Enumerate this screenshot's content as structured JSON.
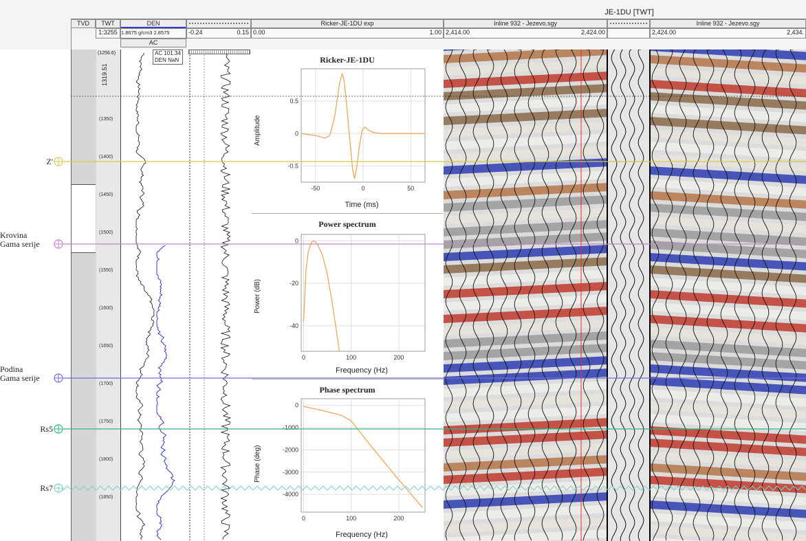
{
  "header": {
    "well_title": "JE-1DU [TWT]",
    "col_tvd": "TVD",
    "col_twt": "TWT",
    "twt_scale": "1:3255",
    "col_den": "DEN",
    "den_range": "1.8675 g/cm3 2.8575",
    "col_ac": "AC",
    "track3_min": "-0.24",
    "track3_max": "0.15",
    "wavelet_title": "Ricker-JE-1DU exp",
    "wavelet_min": "0.00",
    "wavelet_max": "1.00",
    "seismic1_title": "Inline 932 - Jezevo.sgy",
    "seismic1_min": "2,414.00",
    "seismic1_max": "2,424.00",
    "seismic2_title": "Inline 932 - Jezevo.sgy",
    "seismic2_min": "2,424.00",
    "seismic2_max": "2,434."
  },
  "log_readout": {
    "ac": "AC 101.34",
    "den": "DEN NaN",
    "depth_top": "(1256.6)",
    "cursor_depth": "1319.51"
  },
  "twt_ticks": [
    "(1350)",
    "(1400)",
    "(1450)",
    "(1500)",
    "(1550)",
    "(1600)",
    "(1650)",
    "(1700)",
    "(1750)",
    "(1800)",
    "(1850)"
  ],
  "horizons": [
    {
      "label": "Z'",
      "color": "#d4c84a"
    },
    {
      "label": "Krovina\nGama serije",
      "color": "#c97fd0"
    },
    {
      "label": "Podina\nGama serije",
      "color": "#6a6fd6"
    },
    {
      "label": "Rs5",
      "color": "#28b98a"
    },
    {
      "label": "Rs7",
      "color": "#7fd0c8"
    }
  ],
  "wavelet_panel": {
    "title": "Ricker-JE-1DU",
    "ylabel": "Amplitude",
    "xlabel": "Time (ms)",
    "xticks": [
      "-50",
      "0",
      "50"
    ],
    "yticks": [
      "0.5",
      "0",
      "-0.5"
    ]
  },
  "power_panel": {
    "title": "Power spectrum",
    "ylabel": "Power (dB)",
    "xlabel": "Frequency (Hz)",
    "xticks": [
      "0",
      "100",
      "200"
    ],
    "yticks": [
      "0",
      "-20",
      "-40"
    ]
  },
  "phase_panel": {
    "title": "Phase spectrum",
    "ylabel": "Phase (deg)",
    "xlabel": "Frequency (Hz)",
    "xticks": [
      "0",
      "100",
      "200"
    ],
    "yticks": [
      "0",
      "-1000",
      "-2000",
      "-3000",
      "-4000"
    ]
  },
  "chart_data": [
    {
      "type": "line",
      "title": "Ricker-JE-1DU",
      "xlabel": "Time (ms)",
      "ylabel": "Amplitude",
      "xlim": [
        -65,
        65
      ],
      "ylim": [
        -0.75,
        1.0
      ],
      "x": [
        -65,
        -50,
        -40,
        -35,
        -30,
        -25,
        -22,
        -20,
        -17,
        -14,
        -11,
        -9,
        -7,
        -4,
        -1,
        2,
        5,
        10,
        20,
        40,
        65
      ],
      "y": [
        0,
        -0.03,
        -0.07,
        -0.03,
        0.25,
        0.75,
        0.93,
        0.82,
        0.4,
        -0.1,
        -0.55,
        -0.7,
        -0.55,
        -0.2,
        0.05,
        0.1,
        0.06,
        0.02,
        0,
        0,
        0
      ]
    },
    {
      "type": "line",
      "title": "Power spectrum",
      "xlabel": "Frequency (Hz)",
      "ylabel": "Power (dB)",
      "xlim": [
        -5,
        255
      ],
      "ylim": [
        -52,
        3
      ],
      "x": [
        0,
        5,
        10,
        15,
        20,
        25,
        30,
        40,
        50,
        60,
        70,
        75
      ],
      "y": [
        -38,
        -14,
        -5,
        -1.5,
        0,
        -0.5,
        -2,
        -7,
        -16,
        -29,
        -44,
        -52
      ]
    },
    {
      "type": "line",
      "title": "Phase spectrum",
      "xlabel": "Frequency (Hz)",
      "ylabel": "Phase (deg)",
      "xlim": [
        -5,
        255
      ],
      "ylim": [
        -4800,
        300
      ],
      "x": [
        0,
        40,
        80,
        100,
        150,
        200,
        250
      ],
      "y": [
        -50,
        -230,
        -450,
        -700,
        -2050,
        -3350,
        -4600
      ]
    }
  ]
}
